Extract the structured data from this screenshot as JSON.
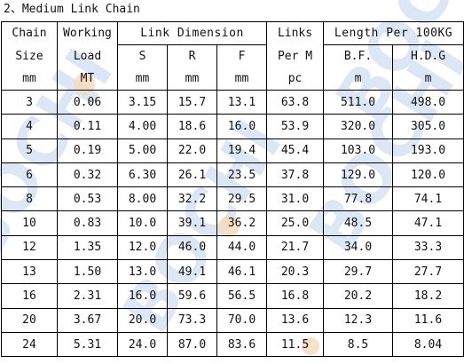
{
  "title": "2、Medium Link Chain",
  "header": {
    "chain_size": [
      "Chain",
      "Size",
      "mm"
    ],
    "working_load": [
      "Working",
      "Load",
      "MT"
    ],
    "link_dimension": "Link  Dimension",
    "link_cols": [
      {
        "name": "S",
        "unit": "mm"
      },
      {
        "name": "R",
        "unit": "mm"
      },
      {
        "name": "F",
        "unit": "mm"
      }
    ],
    "links": [
      "Links",
      "Per M",
      "pc"
    ],
    "length_per": "Length  Per 100KG",
    "length_cols": [
      {
        "name": "B.F.",
        "unit": "m"
      },
      {
        "name": "H.D.G",
        "unit": "m"
      }
    ]
  },
  "rows": [
    [
      "3",
      "0.06",
      "3.15",
      "15.7",
      "13.1",
      "63.8",
      "511.0",
      "498.0"
    ],
    [
      "4",
      "0.11",
      "4.00",
      "18.6",
      "16.0",
      "53.9",
      "320.0",
      "305.0"
    ],
    [
      "5",
      "0.19",
      "5.00",
      "22.0",
      "19.4",
      "45.4",
      "103.0",
      "193.0"
    ],
    [
      "6",
      "0.32",
      "6.30",
      "26.1",
      "23.5",
      "37.8",
      "129.0",
      "120.0"
    ],
    [
      "8",
      "0.53",
      "8.00",
      "32.2",
      "29.5",
      "31.0",
      "77.8",
      "74.1"
    ],
    [
      "10",
      "0.83",
      "10.0",
      "39.1",
      "36.2",
      "25.0",
      "48.5",
      "47.1"
    ],
    [
      "12",
      "1.35",
      "12.0",
      "46.0",
      "44.0",
      "21.7",
      "34.0",
      "33.3"
    ],
    [
      "13",
      "1.50",
      "13.0",
      "49.1",
      "46.1",
      "20.3",
      "29.7",
      "27.7"
    ],
    [
      "16",
      "2.31",
      "16.0",
      "59.6",
      "56.5",
      "16.8",
      "20.2",
      "18.2"
    ],
    [
      "20",
      "3.67",
      "20.0",
      "73.3",
      "70.0",
      "13.6",
      "12.3",
      "11.6"
    ],
    [
      "24",
      "5.31",
      "24.0",
      "87.0",
      "83.6",
      "11.5",
      "8.5",
      "8.04"
    ]
  ],
  "watermark": {
    "text": "BOCHI",
    "color": "#cfe0f2",
    "accent": "#f6d9b8"
  }
}
